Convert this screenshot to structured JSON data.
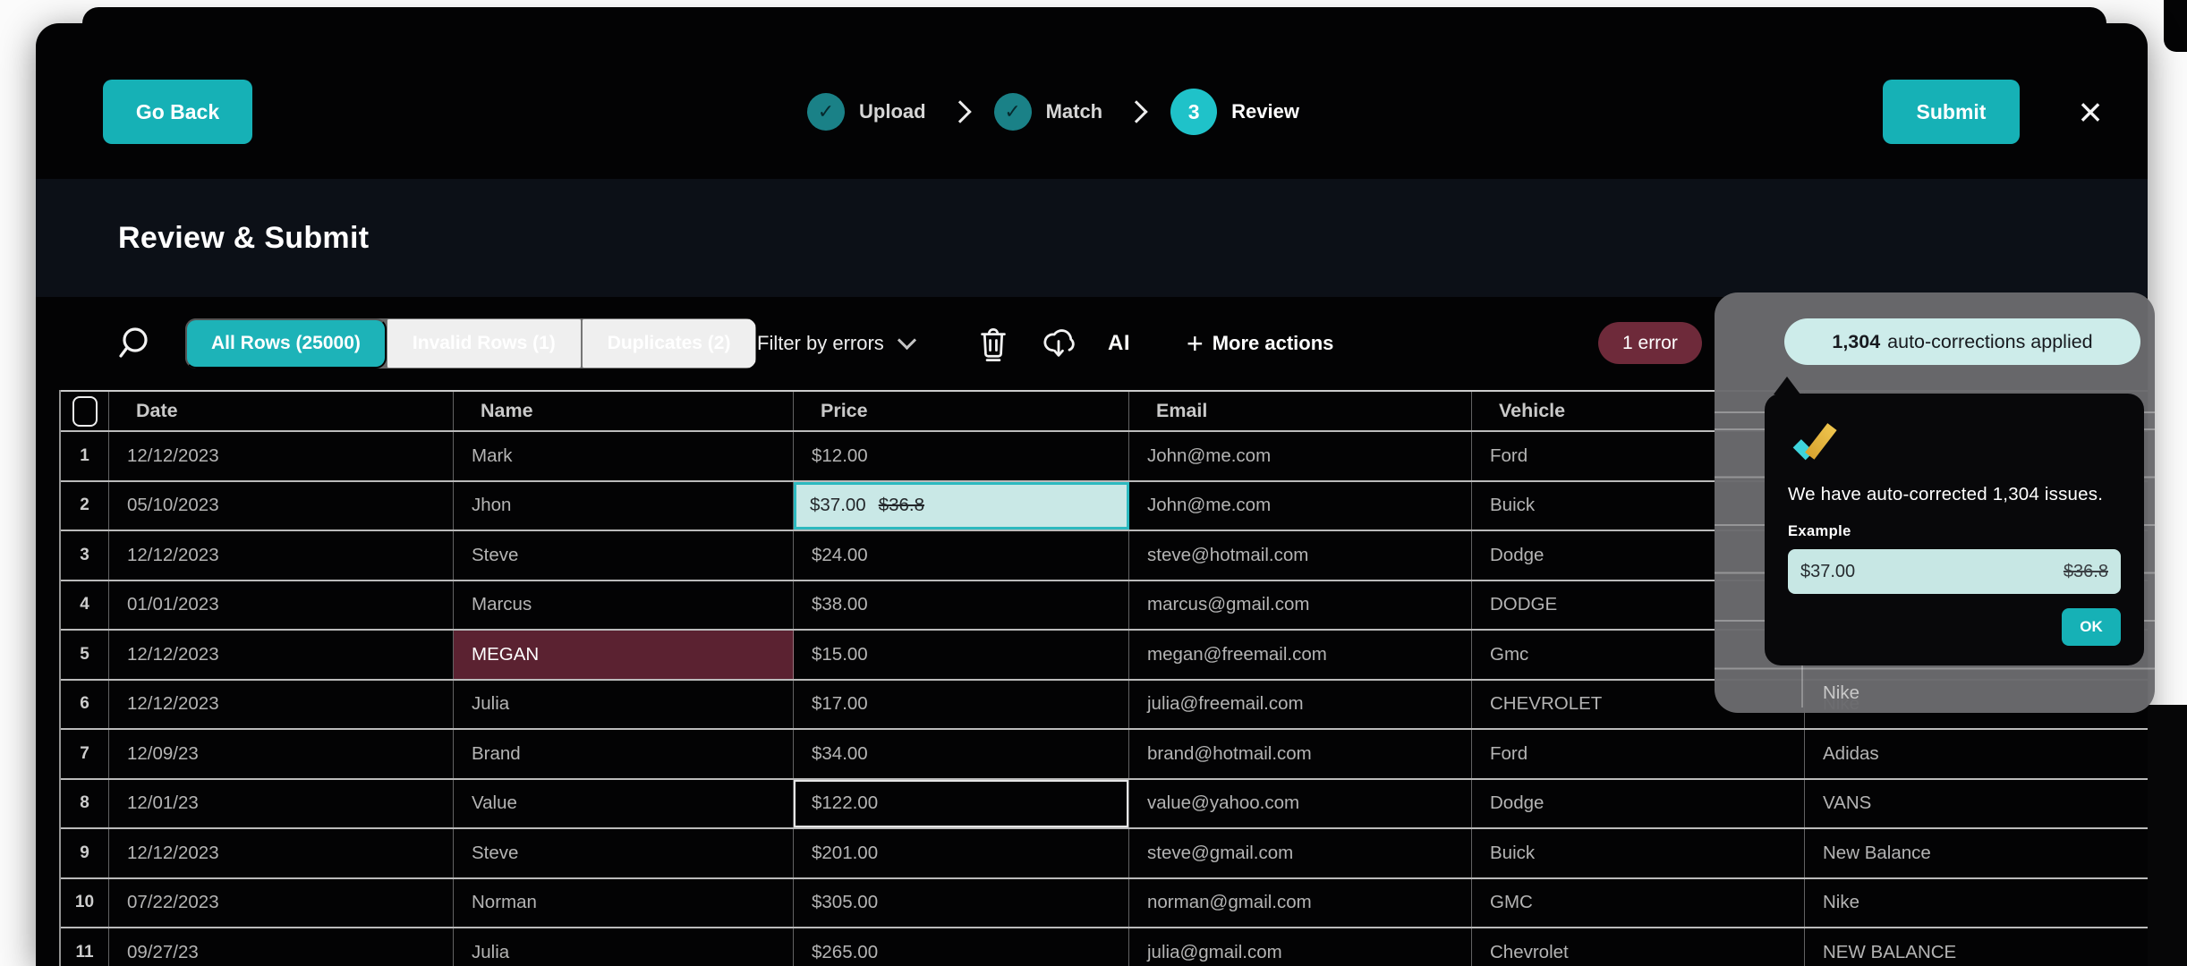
{
  "window": {
    "go_back_label": "Go Back",
    "submit_label": "Submit",
    "close_icon": "×",
    "title": "Review & Submit",
    "stepper": {
      "steps": [
        {
          "label": "Upload",
          "state": "done",
          "icon": "✓"
        },
        {
          "label": "Match",
          "state": "done",
          "icon": "✓"
        },
        {
          "label": "Review",
          "state": "current",
          "icon": "3"
        }
      ]
    }
  },
  "toolbar": {
    "tabs": [
      {
        "label": "All Rows (25000)",
        "active": true
      },
      {
        "label": "Invalid Rows (1)",
        "active": false
      },
      {
        "label": "Duplicates (2)",
        "active": false
      }
    ],
    "filter_label": "Filter by errors",
    "ai_label": "AI",
    "more_actions_plus": "+",
    "more_actions_label": "More actions",
    "error_badge": "1 error",
    "corrections": {
      "count": "1,304",
      "label": "auto-corrections applied"
    }
  },
  "popup": {
    "message": "We have auto-corrected 1,304 issues.",
    "example_label": "Example",
    "corrected_value": "$37.00",
    "original_value": "$36.8",
    "ok_label": "OK"
  },
  "table": {
    "columns": [
      "Date",
      "Name",
      "Price",
      "Email",
      "Vehicle",
      ""
    ],
    "rows": [
      {
        "num": "1",
        "date": "12/12/2023",
        "name": "Mark",
        "price": "$12.00",
        "email": "John@me.com",
        "vehicle": "Ford",
        "brand": ""
      },
      {
        "num": "2",
        "date": "05/10/2023",
        "name": "Jhon",
        "price": "$37.00",
        "price_old": "$36.8",
        "email": "John@me.com",
        "vehicle": "Buick",
        "brand": ""
      },
      {
        "num": "3",
        "date": "12/12/2023",
        "name": "Steve",
        "price": "$24.00",
        "email": "steve@hotmail.com",
        "vehicle": "Dodge",
        "brand": ""
      },
      {
        "num": "4",
        "date": "01/01/2023",
        "name": "Marcus",
        "price": "$38.00",
        "email": "marcus@gmail.com",
        "vehicle": "DODGE",
        "brand": ""
      },
      {
        "num": "5",
        "date": "12/12/2023",
        "name": "MEGAN",
        "name_error": true,
        "price": "$15.00",
        "email": "megan@freemail.com",
        "vehicle": "Gmc",
        "brand": ""
      },
      {
        "num": "6",
        "date": "12/12/2023",
        "name": "Julia",
        "price": "$17.00",
        "email": "julia@freemail.com",
        "vehicle": "CHEVROLET",
        "brand": "Nike"
      },
      {
        "num": "7",
        "date": "12/09/23",
        "name": "Brand",
        "price": "$34.00",
        "email": "brand@hotmail.com",
        "vehicle": "Ford",
        "brand": "Adidas"
      },
      {
        "num": "8",
        "date": "12/01/23",
        "name": "Value",
        "price": "$122.00",
        "price_selected": true,
        "email": "value@yahoo.com",
        "vehicle": "Dodge",
        "brand": "VANS"
      },
      {
        "num": "9",
        "date": "12/12/2023",
        "name": "Steve",
        "price": "$201.00",
        "email": "steve@gmail.com",
        "vehicle": "Buick",
        "brand": "New Balance"
      },
      {
        "num": "10",
        "date": "07/22/2023",
        "name": "Norman",
        "price": "$305.00",
        "email": "norman@gmail.com",
        "vehicle": "GMC",
        "brand": "Nike"
      },
      {
        "num": "11",
        "date": "09/27/23",
        "name": "Julia",
        "price": "$265.00",
        "email": "julia@gmail.com",
        "vehicle": "Chevrolet",
        "brand": "NEW BALANCE"
      }
    ]
  },
  "colors": {
    "accent_teal": "#16b1b6",
    "accent_teal_bright": "#1fc2c9",
    "error_badge": "#6e2a3a",
    "error_cell": "#5b2231",
    "mint": "#cdecea",
    "correction_border": "#2cb9bf",
    "check_gold": "#e2b13d",
    "check_cyan": "#3ed4dc"
  }
}
